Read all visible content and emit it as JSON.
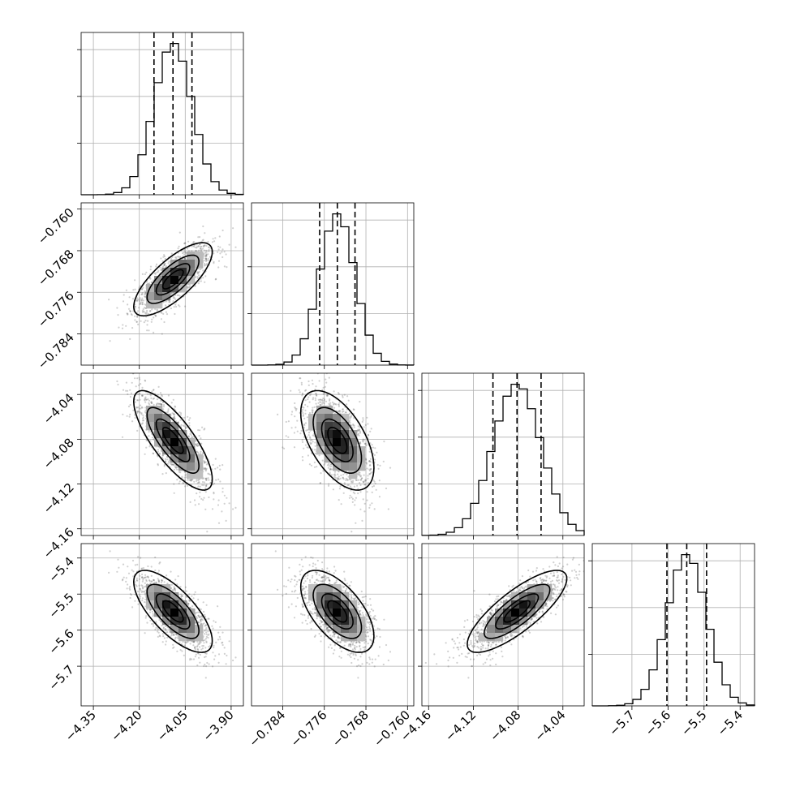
{
  "chart_data": {
    "type": "corner",
    "parameters": [
      {
        "key": "p1",
        "mean": -4.09,
        "sd": 0.062,
        "quantiles": [
          -4.152,
          -4.09,
          -4.028
        ],
        "range": [
          -4.39,
          -3.86
        ],
        "ticks": [
          {
            "value": -4.35,
            "label": "−4.35"
          },
          {
            "value": -4.2,
            "label": "−4.20"
          },
          {
            "value": -4.05,
            "label": "−4.05"
          },
          {
            "value": -3.9,
            "label": "−3.90"
          }
        ]
      },
      {
        "key": "p2",
        "mean": -0.7735,
        "sd": 0.0034,
        "quantiles": [
          -0.7769,
          -0.7735,
          -0.7701
        ],
        "range": [
          -0.79,
          -0.7588
        ],
        "ticks": [
          {
            "value": -0.784,
            "label": "−0.784"
          },
          {
            "value": -0.776,
            "label": "−0.776"
          },
          {
            "value": -0.768,
            "label": "−0.768"
          },
          {
            "value": -0.76,
            "label": "−0.760"
          }
        ]
      },
      {
        "key": "p3",
        "mean": -4.081,
        "sd": 0.0215,
        "quantiles": [
          -4.1025,
          -4.081,
          -4.0595
        ],
        "range": [
          -4.166,
          -4.021
        ],
        "ticks": [
          {
            "value": -4.16,
            "label": "−4.16"
          },
          {
            "value": -4.12,
            "label": "−4.12"
          },
          {
            "value": -4.08,
            "label": "−4.08"
          },
          {
            "value": -4.04,
            "label": "−4.04"
          }
        ]
      },
      {
        "key": "p4",
        "mean": -5.548,
        "sd": 0.055,
        "quantiles": [
          -5.603,
          -5.548,
          -5.493
        ],
        "range": [
          -5.81,
          -5.36
        ],
        "ticks": [
          {
            "value": -5.7,
            "label": "−5.7"
          },
          {
            "value": -5.6,
            "label": "−5.6"
          },
          {
            "value": -5.5,
            "label": "−5.5"
          },
          {
            "value": -5.4,
            "label": "−5.4"
          }
        ]
      }
    ],
    "correlations": [
      [
        1,
        0.75,
        -0.78,
        -0.72
      ],
      [
        0.75,
        1,
        -0.55,
        -0.6
      ],
      [
        -0.78,
        -0.55,
        1,
        0.8
      ],
      [
        -0.72,
        -0.6,
        0.8,
        1
      ]
    ],
    "histogram_bins": 20,
    "quantile_levels": [
      0.16,
      0.5,
      0.84
    ],
    "contour_sigma_levels": [
      0.5,
      1.0,
      1.5,
      2.0
    ],
    "grid": true,
    "colors": {
      "lines": "#000000",
      "grid": "#b0b0b0",
      "points": "#555555"
    }
  }
}
